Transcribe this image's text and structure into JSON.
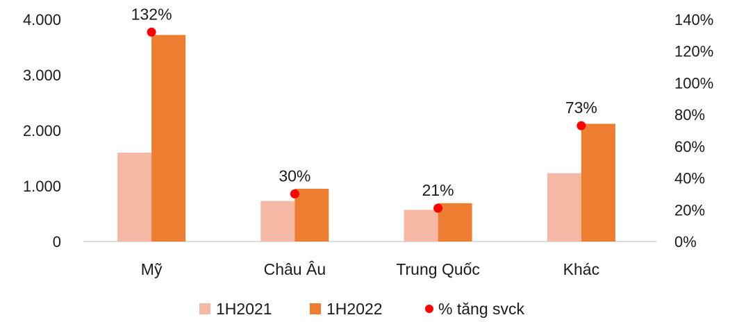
{
  "chart_data": {
    "type": "bar",
    "categories": [
      "Mỹ",
      "Châu Âu",
      "Trung Quốc",
      "Khác"
    ],
    "series": [
      {
        "name": "1H2021",
        "type": "bar",
        "axis": "left",
        "color": "#F4B8A4",
        "values": [
          1600,
          730,
          570,
          1230
        ]
      },
      {
        "name": "1H2022",
        "type": "bar",
        "axis": "left",
        "color": "#ED7D31",
        "values": [
          3720,
          950,
          690,
          2120
        ]
      },
      {
        "name": "% tăng svck",
        "type": "point",
        "axis": "right",
        "color": "#FF0000",
        "values": [
          132,
          30,
          21,
          73
        ],
        "labels": [
          "132%",
          "30%",
          "21%",
          "73%"
        ]
      }
    ],
    "yaxis_left": {
      "min": 0,
      "max": 4000,
      "ticks": [
        0,
        1000,
        2000,
        3000,
        4000
      ],
      "tick_labels": [
        "0",
        "1.000",
        "2.000",
        "3.000",
        "4.000"
      ]
    },
    "yaxis_right": {
      "min": 0,
      "max": 140,
      "ticks": [
        0,
        20,
        40,
        60,
        80,
        100,
        120,
        140
      ],
      "tick_labels": [
        "0%",
        "20%",
        "40%",
        "60%",
        "80%",
        "100%",
        "120%",
        "140%"
      ]
    },
    "grid": false,
    "legend_position": "bottom"
  }
}
